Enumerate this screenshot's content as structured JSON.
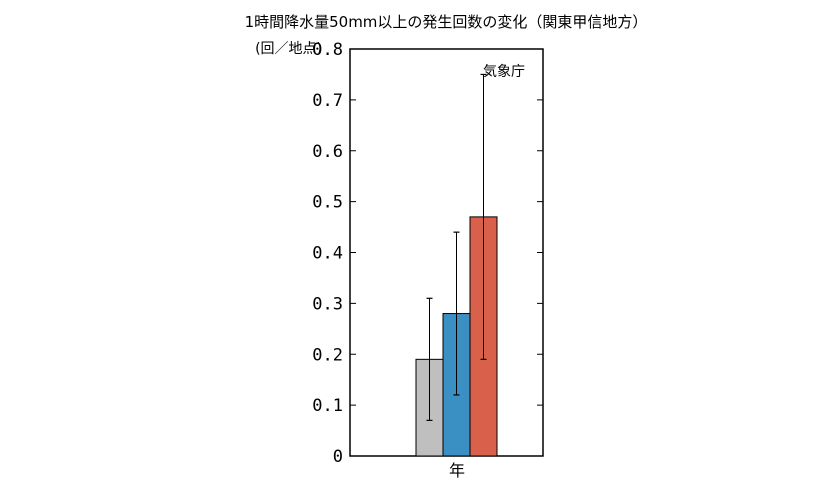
{
  "chart_data": {
    "type": "bar",
    "title": "1時間降水量50mm以上の発生回数の変化（関東甲信地方）",
    "ylabel": "(回／地点)",
    "xlabel": "",
    "categories": [
      "年"
    ],
    "ylim": [
      0,
      0.8
    ],
    "yticks": [
      "0",
      "0.1",
      "0.2",
      "0.3",
      "0.4",
      "0.5",
      "0.6",
      "0.7",
      "0.8"
    ],
    "grid": false,
    "annotation": "気象庁",
    "series": [
      {
        "values": [
          0.19
        ],
        "error_low": [
          0.07
        ],
        "error_high": [
          0.31
        ],
        "color": "#bfbfbf"
      },
      {
        "values": [
          0.28
        ],
        "error_low": [
          0.12
        ],
        "error_high": [
          0.44
        ],
        "color": "#3a8fc3"
      },
      {
        "values": [
          0.47
        ],
        "error_low": [
          0.19
        ],
        "error_high": [
          0.75
        ],
        "color": "#d9604a"
      }
    ]
  }
}
